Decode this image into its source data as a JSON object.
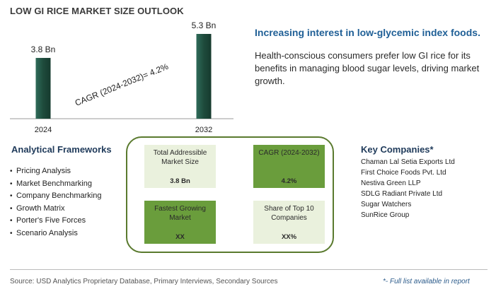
{
  "title": "LOW GI RICE MARKET SIZE OUTLOOK",
  "chart_data": {
    "type": "bar",
    "categories": [
      "2024",
      "2032"
    ],
    "values": [
      3.8,
      5.3
    ],
    "value_labels": [
      "3.8 Bn",
      "5.3 Bn"
    ],
    "annotation": "CAGR (2024-2032)=  4.2%",
    "ylim": [
      0,
      5.3
    ],
    "bar_color": "#1e4b3c",
    "grid": false
  },
  "headline": "Increasing interest in low-glycemic index foods.",
  "description": "Health-conscious consumers prefer low GI rice for its benefits in managing blood sugar levels, driving market growth.",
  "frameworks": {
    "title": "Analytical Frameworks",
    "items": [
      "Pricing Analysis",
      "Market Benchmarking",
      "Company Benchmarking",
      "Growth Matrix",
      "Porter's Five Forces",
      "Scenario Analysis"
    ]
  },
  "metrics": {
    "tam": {
      "label": "Total Addressible Market Size",
      "value": "3.8 Bn"
    },
    "cagr": {
      "label": "CAGR (2024-2032)",
      "value": "4.2%"
    },
    "fastest": {
      "label": "Fastest Growing Market",
      "value": "XX"
    },
    "share": {
      "label": "Share of Top 10 Companies",
      "value": "XX%"
    }
  },
  "companies": {
    "title": "Key Companies*",
    "items": [
      "Chaman Lal Setia Exports Ltd",
      "First Choice Foods Pvt. Ltd",
      "Nestiva Green LLP",
      "SDLG Radiant Private Ltd",
      "Sugar Watchers",
      "SunRice Group"
    ]
  },
  "source": "Source: USD Analytics Proprietary Database, Primary Interviews, Secondary Sources",
  "footnote": "*- Full list available in report",
  "colors": {
    "accent": "#1f5f96",
    "frame": "#5a7a2e",
    "light_box": "#eaf1dd",
    "dark_box": "#6a9d3c"
  }
}
